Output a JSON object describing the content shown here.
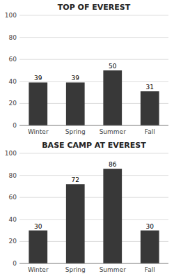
{
  "chart_data": [
    {
      "type": "bar",
      "title": "TOP OF EVEREST",
      "categories": [
        "Winter",
        "Spring",
        "Summer",
        "Fall"
      ],
      "values": [
        39,
        39,
        50,
        31
      ],
      "color": "#383838",
      "ylim": [
        0,
        100
      ],
      "yticks": [
        0,
        20,
        40,
        60,
        80,
        100
      ],
      "grid": true,
      "data_labels": true
    },
    {
      "type": "bar",
      "title": "BASE CAMP AT EVEREST",
      "categories": [
        "Winter",
        "Spring",
        "Summer",
        "Fall"
      ],
      "values": [
        30,
        72,
        86,
        30
      ],
      "color": "#383838",
      "ylim": [
        0,
        100
      ],
      "yticks": [
        0,
        20,
        40,
        60,
        80,
        100
      ],
      "grid": true,
      "data_labels": true
    }
  ]
}
